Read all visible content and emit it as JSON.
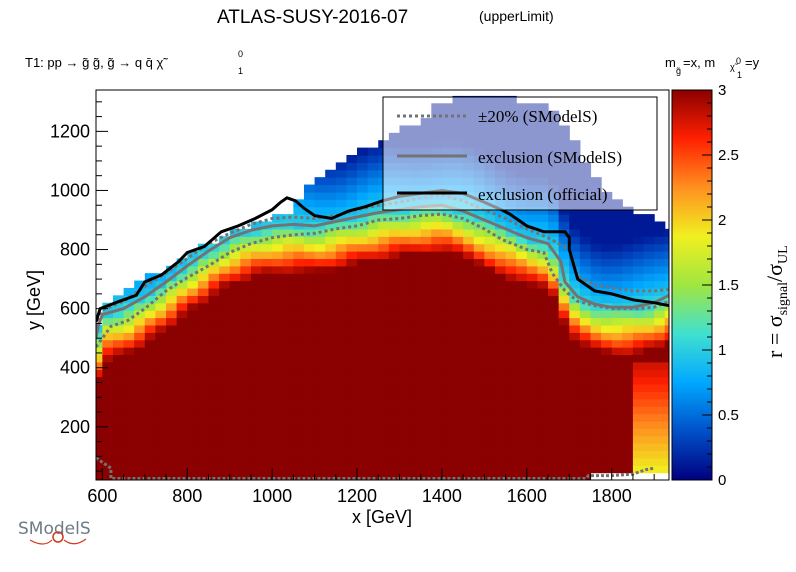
{
  "title": "ATLAS-SUSY-2016-07",
  "subtitle": "(upperLimit)",
  "process_label": "T1: pp  → g̃ g̃, g̃  → q q̄  χ̃",
  "process_sup": "0",
  "process_sub": "1",
  "mass_label_a": "m",
  "mass_label_a_sub": "g̃",
  "mass_label_b": "=x, m",
  "mass_label_b_sub": "χ̃",
  "mass_label_b_subsup": "0",
  "mass_label_b_subsub": "1",
  "mass_label_c": "=y",
  "logo_text": "SModelS",
  "colors": {
    "exclusion_official": "#000000",
    "exclusion_smodels": "#737373",
    "band_smodels": "#737373",
    "colormap": [
      "#000080",
      "#0050c8",
      "#00a8ff",
      "#40e0d0",
      "#a0e640",
      "#f0f020",
      "#ff9020",
      "#ff2000",
      "#8b0000"
    ]
  },
  "chart_data": {
    "type": "heatmap",
    "title": "ATLAS-SUSY-2016-07",
    "xlabel": "x [GeV]",
    "ylabel": "y [GeV]",
    "colorbar_label": "r = σsignal/σUL",
    "colorbar_label_main": "r = σ",
    "colorbar_label_sub1": "signal",
    "colorbar_label_slash": "/σ",
    "colorbar_label_sub2": "UL",
    "xlim": [
      585,
      1935
    ],
    "ylim": [
      20,
      1340
    ],
    "zlim": [
      0,
      3
    ],
    "x_ticks": [
      600,
      800,
      1000,
      1200,
      1400,
      1600,
      1800
    ],
    "y_ticks": [
      200,
      400,
      600,
      800,
      1000,
      1200
    ],
    "z_ticks": [
      0,
      0.5,
      1,
      1.5,
      2,
      2.5,
      3
    ],
    "grid": false,
    "legend_position": "top-right",
    "legend": [
      {
        "label": "±20% (SModelS)",
        "style": "dotted"
      },
      {
        "label": "exclusion (SModelS)",
        "style": "solid-gray"
      },
      {
        "label": "exclusion (official)",
        "style": "solid-black"
      }
    ],
    "heatmap_grid": {
      "x_step": 25,
      "y_step": 25,
      "x_start": 587.5,
      "y_start": 32.5
    },
    "exclusion_official": [
      [
        585,
        555
      ],
      [
        595,
        600
      ],
      [
        640,
        625
      ],
      [
        680,
        645
      ],
      [
        700,
        690
      ],
      [
        740,
        715
      ],
      [
        780,
        760
      ],
      [
        800,
        790
      ],
      [
        840,
        810
      ],
      [
        880,
        860
      ],
      [
        920,
        880
      ],
      [
        960,
        905
      ],
      [
        1000,
        935
      ],
      [
        1020,
        960
      ],
      [
        1035,
        975
      ],
      [
        1055,
        965
      ],
      [
        1075,
        940
      ],
      [
        1100,
        915
      ],
      [
        1140,
        905
      ],
      [
        1180,
        930
      ],
      [
        1220,
        945
      ],
      [
        1260,
        965
      ],
      [
        1300,
        980
      ],
      [
        1350,
        990
      ],
      [
        1400,
        1000
      ],
      [
        1450,
        990
      ],
      [
        1500,
        960
      ],
      [
        1540,
        935
      ],
      [
        1560,
        920
      ],
      [
        1600,
        880
      ],
      [
        1640,
        860
      ],
      [
        1690,
        860
      ],
      [
        1700,
        840
      ],
      [
        1700,
        800
      ],
      [
        1720,
        700
      ],
      [
        1760,
        660
      ],
      [
        1800,
        650
      ],
      [
        1850,
        630
      ],
      [
        1900,
        620
      ],
      [
        1935,
        610
      ]
    ],
    "exclusion_smodels": [
      [
        585,
        500
      ],
      [
        590,
        540
      ],
      [
        600,
        580
      ],
      [
        650,
        600
      ],
      [
        700,
        640
      ],
      [
        750,
        690
      ],
      [
        800,
        745
      ],
      [
        850,
        795
      ],
      [
        900,
        840
      ],
      [
        950,
        865
      ],
      [
        1000,
        880
      ],
      [
        1050,
        885
      ],
      [
        1100,
        880
      ],
      [
        1150,
        895
      ],
      [
        1200,
        910
      ],
      [
        1250,
        925
      ],
      [
        1300,
        935
      ],
      [
        1350,
        945
      ],
      [
        1400,
        950
      ],
      [
        1450,
        930
      ],
      [
        1500,
        900
      ],
      [
        1550,
        870
      ],
      [
        1600,
        840
      ],
      [
        1650,
        820
      ],
      [
        1680,
        760
      ],
      [
        1690,
        690
      ],
      [
        1720,
        640
      ],
      [
        1760,
        615
      ],
      [
        1800,
        605
      ],
      [
        1850,
        605
      ],
      [
        1900,
        620
      ],
      [
        1935,
        645
      ]
    ],
    "exclusion_smodels_bottom": [
      [
        585,
        95
      ],
      [
        600,
        80
      ],
      [
        620,
        60
      ],
      [
        620,
        25
      ],
      [
        1740,
        25
      ],
      [
        1745,
        35
      ],
      [
        1800,
        35
      ],
      [
        1850,
        40
      ],
      [
        1880,
        55
      ],
      [
        1900,
        60
      ]
    ],
    "band_inner": [
      [
        585,
        470
      ],
      [
        620,
        540
      ],
      [
        660,
        560
      ],
      [
        700,
        600
      ],
      [
        750,
        660
      ],
      [
        800,
        705
      ],
      [
        850,
        745
      ],
      [
        900,
        790
      ],
      [
        950,
        820
      ],
      [
        1000,
        840
      ],
      [
        1050,
        850
      ],
      [
        1100,
        855
      ],
      [
        1150,
        870
      ],
      [
        1200,
        880
      ],
      [
        1250,
        900
      ],
      [
        1300,
        905
      ],
      [
        1350,
        915
      ],
      [
        1400,
        920
      ],
      [
        1450,
        905
      ],
      [
        1500,
        870
      ],
      [
        1540,
        835
      ],
      [
        1600,
        800
      ],
      [
        1640,
        790
      ],
      [
        1660,
        720
      ],
      [
        1690,
        660
      ],
      [
        1720,
        625
      ],
      [
        1760,
        610
      ],
      [
        1800,
        600
      ],
      [
        1860,
        600
      ],
      [
        1900,
        605
      ],
      [
        1935,
        625
      ]
    ],
    "band_outer": [
      [
        585,
        540
      ],
      [
        600,
        595
      ],
      [
        650,
        625
      ],
      [
        700,
        675
      ],
      [
        750,
        720
      ],
      [
        800,
        770
      ],
      [
        850,
        820
      ],
      [
        900,
        855
      ],
      [
        950,
        885
      ],
      [
        1000,
        905
      ],
      [
        1050,
        910
      ],
      [
        1100,
        905
      ],
      [
        1150,
        915
      ],
      [
        1200,
        935
      ],
      [
        1250,
        950
      ],
      [
        1300,
        960
      ],
      [
        1350,
        975
      ],
      [
        1400,
        985
      ],
      [
        1450,
        965
      ],
      [
        1500,
        935
      ],
      [
        1550,
        905
      ],
      [
        1600,
        870
      ],
      [
        1650,
        840
      ],
      [
        1700,
        800
      ],
      [
        1710,
        760
      ],
      [
        1720,
        710
      ],
      [
        1760,
        680
      ],
      [
        1800,
        670
      ],
      [
        1850,
        660
      ],
      [
        1900,
        660
      ],
      [
        1935,
        665
      ]
    ]
  }
}
